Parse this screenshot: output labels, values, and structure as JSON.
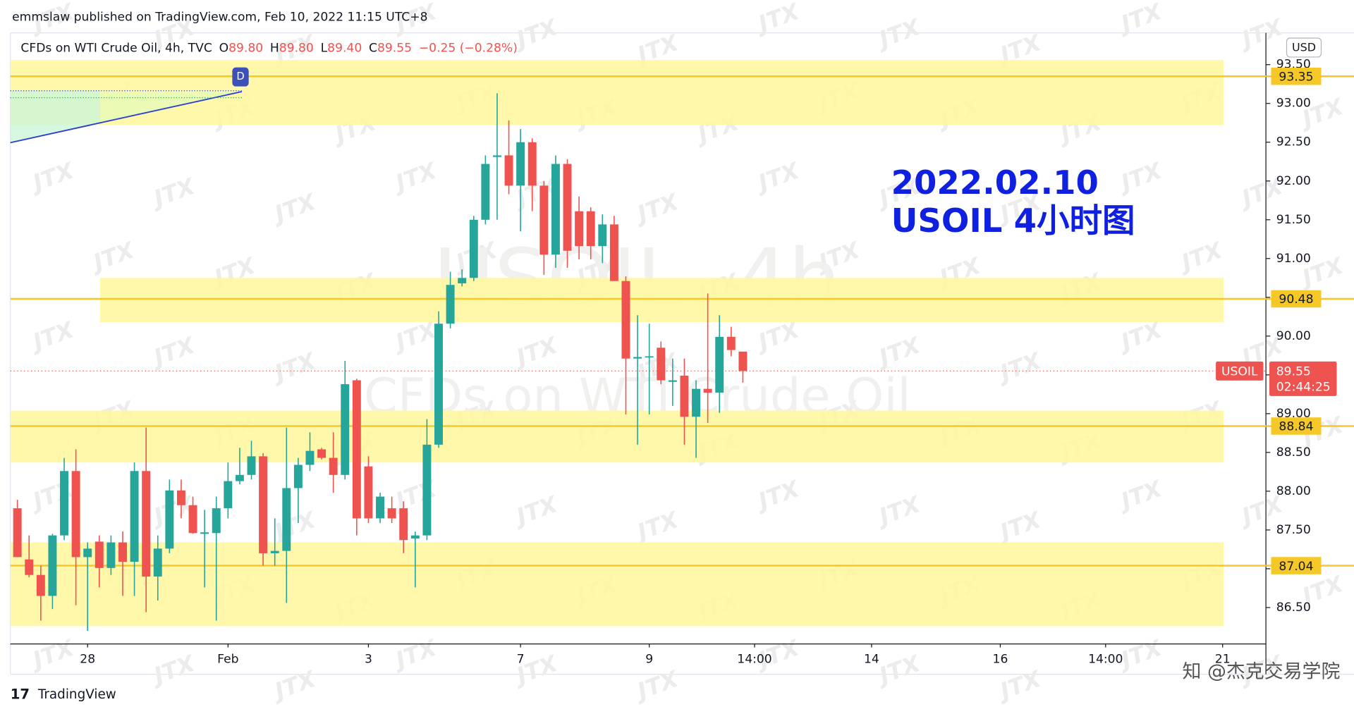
{
  "header": {
    "publisher": "emmslaw published on TradingView.com, Feb 10, 2022 11:15 UTC+8",
    "legend": {
      "symbol": "CFDs on WTI Crude Oil, 4h, TVC",
      "open_label": "O",
      "open": "89.80",
      "high_label": "H",
      "high": "89.80",
      "low_label": "L",
      "low": "89.40",
      "close_label": "C",
      "close": "89.55",
      "change": "−0.25 (−0.28%)"
    },
    "currency": "USD",
    "drawing_label": "D"
  },
  "watermark": {
    "main": "USOIL, 4h",
    "sub": "CFDs on WTI Crude Oil",
    "logo": "JTX"
  },
  "annotation": {
    "line1": "2022.02.10",
    "line2": "USOIL 4小时图"
  },
  "footer": {
    "brand": "TradingView",
    "credit": "知 @杰克交易学院"
  },
  "chart_data": {
    "type": "candlestick",
    "ylim": [
      86.03,
      93.91
    ],
    "xlim": [
      -0.6,
      106.7
    ],
    "yticks": [
      {
        "value": 86.5,
        "label": "86.50"
      },
      {
        "value": 87,
        "label": "87.00"
      },
      {
        "value": 87.5,
        "label": "87.50"
      },
      {
        "value": 88,
        "label": "88.00"
      },
      {
        "value": 88.5,
        "label": "88.50"
      },
      {
        "value": 89,
        "label": "89.00"
      },
      {
        "value": 89.5,
        "label": "89.50"
      },
      {
        "value": 90,
        "label": "90.00"
      },
      {
        "value": 90.5,
        "label": "90.50"
      },
      {
        "value": 91,
        "label": "91.00"
      },
      {
        "value": 91.5,
        "label": "91.50"
      },
      {
        "value": 92,
        "label": "92.00"
      },
      {
        "value": 92.5,
        "label": "92.50"
      },
      {
        "value": 93,
        "label": "93.00"
      },
      {
        "value": 93.5,
        "label": "93.50"
      }
    ],
    "xticks": [
      {
        "value": 6,
        "label": "28"
      },
      {
        "value": 18,
        "label": "Feb"
      },
      {
        "value": 30,
        "label": "3"
      },
      {
        "value": 43,
        "label": "7"
      },
      {
        "value": 54,
        "label": "9"
      },
      {
        "value": 63,
        "label": "14:00"
      },
      {
        "value": 73,
        "label": "14"
      },
      {
        "value": 84,
        "label": "16"
      },
      {
        "value": 93,
        "label": "14:00"
      },
      {
        "value": 103,
        "label": "21"
      }
    ],
    "up_color": "#26a69a",
    "down_color": "#ef5350",
    "candles": {
      "open": [
        87.78,
        87.12,
        86.92,
        86.65,
        87.43,
        88.26,
        87.15,
        87.35,
        87.01,
        87.34,
        87.09,
        88.26,
        86.9,
        87.26,
        88.01,
        87.82,
        87.45,
        87.46,
        87.78,
        88.13,
        88.21,
        88.45,
        87.2,
        87.23,
        88.04,
        88.34,
        88.54,
        88.43,
        88.21,
        89.43,
        88.32,
        87.65,
        87.78,
        87.78,
        87.39,
        87.43,
        88.6,
        90.16,
        90.68,
        90.75,
        91.5,
        92.31,
        92.33,
        91.94,
        92.5,
        91.94,
        91.05,
        92.22,
        91.61,
        91.61,
        91.16,
        91.44,
        90.71,
        89.71,
        89.73,
        89.85,
        89.41,
        89.49,
        88.96,
        89.32,
        89.27,
        89.99,
        89.8
      ],
      "high": [
        87.89,
        87.43,
        87.04,
        87.45,
        88.43,
        88.54,
        87.34,
        87.43,
        87.43,
        87.48,
        88.37,
        88.82,
        87.43,
        88.15,
        88.15,
        87.93,
        87.76,
        87.93,
        88.37,
        88.56,
        88.65,
        88.49,
        87.65,
        88.82,
        88.43,
        88.76,
        88.56,
        88.76,
        89.68,
        89.45,
        88.45,
        87.98,
        87.93,
        87.87,
        87.48,
        88.93,
        90.32,
        90.83,
        90.86,
        91.55,
        92.33,
        93.13,
        92.78,
        92.67,
        92.55,
        92,
        92.33,
        92.28,
        91.8,
        91.66,
        91.57,
        91.55,
        90.77,
        90.27,
        90.16,
        89.93,
        89.71,
        89.71,
        89.43,
        90.55,
        90.27,
        90.12,
        89.8
      ],
      "low": [
        87.15,
        86.89,
        86.33,
        86.48,
        87.37,
        86.53,
        86.2,
        86.76,
        86.92,
        86.65,
        86.65,
        86.44,
        86.59,
        87.2,
        87.65,
        87.45,
        86.76,
        86.33,
        87.65,
        88.09,
        88.15,
        87.04,
        87.04,
        86.56,
        87.59,
        88.26,
        88.41,
        87.98,
        88.15,
        87.43,
        87.59,
        87.59,
        87.59,
        87.2,
        86.76,
        87.37,
        88.56,
        90.1,
        90.64,
        90.71,
        91.44,
        91.5,
        91.83,
        91.35,
        91.61,
        90.79,
        90.88,
        90.88,
        90.99,
        90.99,
        90.94,
        90.71,
        88.99,
        88.6,
        88.99,
        89.38,
        89.1,
        88.6,
        88.43,
        88.88,
        89.01,
        89.74,
        89.4
      ],
      "close": [
        87.15,
        86.92,
        86.65,
        87.43,
        88.26,
        87.15,
        87.26,
        87.01,
        87.34,
        87.09,
        88.26,
        86.9,
        87.26,
        88.01,
        87.82,
        87.46,
        87.47,
        87.78,
        88.13,
        88.21,
        88.45,
        87.2,
        87.23,
        88.04,
        88.34,
        88.52,
        88.43,
        88.21,
        89.38,
        87.65,
        87.65,
        87.93,
        87.65,
        87.37,
        87.43,
        88.6,
        90.16,
        90.66,
        90.75,
        91.5,
        92.22,
        92.33,
        91.94,
        92.5,
        91.94,
        91.05,
        92.22,
        91.1,
        91.16,
        91.16,
        91.44,
        90.71,
        89.71,
        89.73,
        89.74,
        89.43,
        89.43,
        88.96,
        89.32,
        89.27,
        89.99,
        89.82,
        89.55
      ]
    },
    "zones": [
      [
        92.72,
        93.56
      ],
      [
        90.18,
        90.75
      ],
      [
        88.37,
        89.04
      ],
      [
        86.26,
        87.34
      ]
    ],
    "zone_color": "#fff7a1",
    "levels": [
      93.35,
      90.48,
      88.84,
      87.04
    ],
    "level_color": "#f5c828",
    "price_line": {
      "symbol": "USOIL",
      "value": 89.55,
      "countdown": "02:44:25",
      "color": "#ef5350"
    }
  }
}
